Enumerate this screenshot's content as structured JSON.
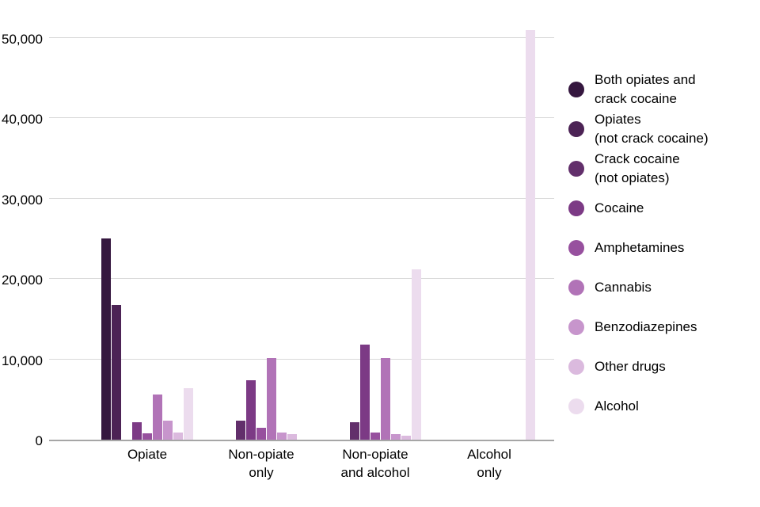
{
  "chart_data": {
    "type": "bar",
    "title": "",
    "xlabel": "",
    "ylabel": "",
    "grid": true,
    "legend_position": "right",
    "ylim": [
      0,
      50000
    ],
    "yticks": [
      0,
      10000,
      20000,
      30000,
      40000,
      50000
    ],
    "ytick_labels": [
      "0",
      "10,000",
      "20,000",
      "30,000",
      "40,000",
      "50,000"
    ],
    "categories": [
      "Opiate",
      "Non-opiate only",
      "Non-opiate and alcohol",
      "Alcohol only"
    ],
    "category_labels": [
      "Opiate",
      "Non-opiate\nonly",
      "Non-opiate\nand alcohol",
      "Alcohol\nonly"
    ],
    "series": [
      {
        "name": "Both opiates and crack cocaine",
        "legend_label": "Both opiates and\ncrack cocaine",
        "color": "#35173f",
        "values": [
          25000,
          0,
          0,
          0
        ]
      },
      {
        "name": "Opiates (not crack cocaine)",
        "legend_label": "Opiates\n(not crack cocaine)",
        "color": "#4c2355",
        "values": [
          16800,
          0,
          0,
          0
        ]
      },
      {
        "name": "Crack cocaine (not opiates)",
        "legend_label": "Crack cocaine\n(not opiates)",
        "color": "#622f6b",
        "values": [
          0,
          2400,
          2200,
          0
        ]
      },
      {
        "name": "Cocaine",
        "legend_label": "Cocaine",
        "color": "#7c3a85",
        "values": [
          2200,
          7400,
          11800,
          0
        ]
      },
      {
        "name": "Amphetamines",
        "legend_label": "Amphetamines",
        "color": "#97509e",
        "values": [
          800,
          1500,
          900,
          0
        ]
      },
      {
        "name": "Cannabis",
        "legend_label": "Cannabis",
        "color": "#b173b7",
        "values": [
          5600,
          10200,
          10200,
          0
        ]
      },
      {
        "name": "Benzodiazepines",
        "legend_label": "Benzodiazepines",
        "color": "#c795cc",
        "values": [
          2400,
          900,
          700,
          0
        ]
      },
      {
        "name": "Other drugs",
        "legend_label": "Other drugs",
        "color": "#dbbade",
        "values": [
          900,
          700,
          500,
          0
        ]
      },
      {
        "name": "Alcohol",
        "legend_label": "Alcohol",
        "color": "#ecdcee",
        "values": [
          6400,
          0,
          21200,
          51000
        ]
      }
    ],
    "colors": {
      "gridline": "#d9d9d9",
      "axis_line": "#a6a6a6",
      "text": "#000000",
      "background": "#ffffff"
    }
  }
}
